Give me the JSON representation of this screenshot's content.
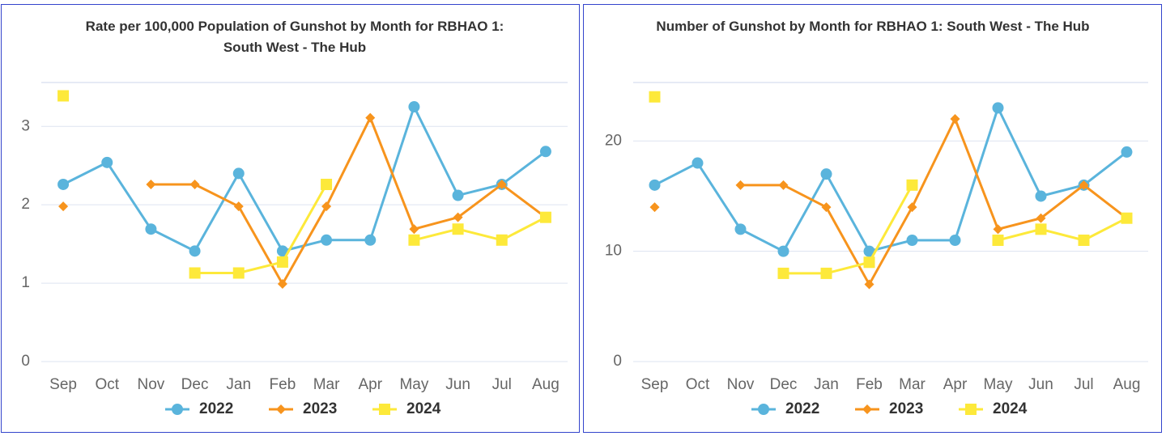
{
  "chart_data": [
    {
      "type": "line",
      "title": "Rate per 100,000 Population of Gunshot by Month for RBHAO 1: South West - The Hub",
      "categories": [
        "Sep",
        "Oct",
        "Nov",
        "Dec",
        "Jan",
        "Feb",
        "Mar",
        "Apr",
        "May",
        "Jun",
        "Jul",
        "Aug"
      ],
      "series": [
        {
          "name": "2022",
          "color": "#5ab4dc",
          "marker": "circle",
          "values": [
            2.26,
            2.54,
            1.69,
            1.41,
            2.4,
            1.41,
            1.55,
            1.55,
            3.25,
            2.12,
            2.26,
            2.68
          ]
        },
        {
          "name": "2023",
          "color": "#f7941d",
          "marker": "diamond",
          "values": [
            1.98,
            null,
            2.26,
            2.26,
            1.98,
            0.99,
            1.98,
            3.11,
            1.69,
            1.84,
            2.26,
            1.84
          ]
        },
        {
          "name": "2024",
          "color": "#fde93a",
          "marker": "square",
          "values": [
            3.39,
            null,
            null,
            1.13,
            1.13,
            1.27,
            2.26,
            null,
            1.55,
            1.69,
            1.55,
            1.84
          ]
        }
      ],
      "ylim": [
        0,
        3.56
      ],
      "yticks": [
        0,
        1,
        2,
        3
      ],
      "grid": true,
      "legend": "bottom"
    },
    {
      "type": "line",
      "title": "Number of Gunshot by Month for RBHAO 1: South West - The Hub",
      "categories": [
        "Sep",
        "Oct",
        "Nov",
        "Dec",
        "Jan",
        "Feb",
        "Mar",
        "Apr",
        "May",
        "Jun",
        "Jul",
        "Aug"
      ],
      "series": [
        {
          "name": "2022",
          "color": "#5ab4dc",
          "marker": "circle",
          "values": [
            16,
            18,
            12,
            10,
            17,
            10,
            11,
            11,
            23,
            15,
            16,
            19
          ]
        },
        {
          "name": "2023",
          "color": "#f7941d",
          "marker": "diamond",
          "values": [
            14,
            null,
            16,
            16,
            14,
            7,
            14,
            22,
            12,
            13,
            16,
            13
          ]
        },
        {
          "name": "2024",
          "color": "#fde93a",
          "marker": "square",
          "values": [
            24,
            null,
            null,
            8,
            8,
            9,
            16,
            null,
            11,
            12,
            11,
            13
          ]
        }
      ],
      "ylim": [
        0,
        25.3
      ],
      "yticks": [
        0,
        10,
        20
      ],
      "grid": true,
      "legend": "bottom"
    }
  ]
}
